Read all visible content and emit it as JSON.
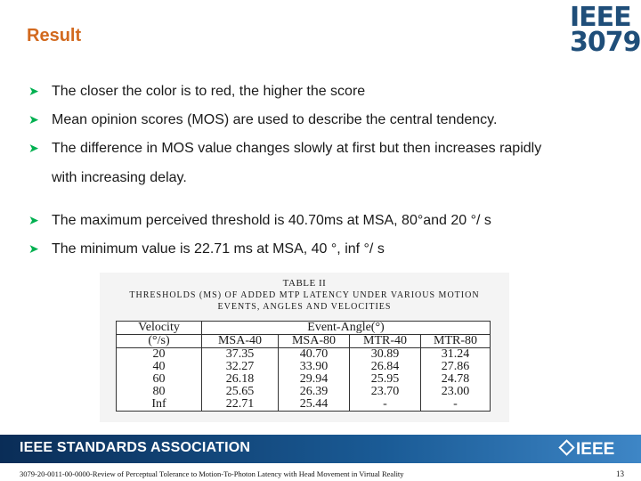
{
  "slide": {
    "title": "Result",
    "logo_line1": "IEEE",
    "logo_line2": "3079"
  },
  "bullets": [
    {
      "text": "The closer the color is to red, the higher the score"
    },
    {
      "text": "Mean opinion scores (MOS) are used to describe the central tendency."
    },
    {
      "text": "The difference in MOS value changes slowly at first but then increases rapidly"
    },
    {
      "text": "with increasing delay."
    },
    {
      "text": "The maximum perceived threshold is 40.70ms at MSA, 80°and 20 °/ s"
    },
    {
      "text": "The minimum value is 22.71 ms at MSA, 40 °, inf °/ s"
    }
  ],
  "table": {
    "caption_title": "TABLE II",
    "caption_line1": "THRESHOLDS (MS) OF ADDED MTP LATENCY UNDER VARIOUS MOTION",
    "caption_line2": "EVENTS, ANGLES AND VELOCITIES",
    "header_velocity": "Velocity",
    "header_velocity_unit": "(°/s)",
    "header_group": "Event-Angle(°)",
    "columns": [
      "MSA-40",
      "MSA-80",
      "MTR-40",
      "MTR-80"
    ],
    "rows": [
      [
        "20",
        "37.35",
        "40.70",
        "30.89",
        "31.24"
      ],
      [
        "40",
        "32.27",
        "33.90",
        "26.84",
        "27.86"
      ],
      [
        "60",
        "26.18",
        "29.94",
        "25.95",
        "24.78"
      ],
      [
        "80",
        "25.65",
        "26.39",
        "23.70",
        "23.00"
      ],
      [
        "Inf",
        "22.71",
        "25.44",
        "-",
        "-"
      ]
    ]
  },
  "footer": {
    "association": "IEEE STANDARDS ASSOCIATION",
    "logo": "IEEE",
    "caption": "3079-20-0011-00-0000-Review of Perceptual Tolerance to Motion-To-Photon Latency with Head Movement in Virtual Reality",
    "page": "13"
  },
  "colors": {
    "title": "#d2691e",
    "bullet_arrow": "#00b050",
    "logo": "#1f4e79",
    "footer_bar": "#0a2d57"
  }
}
